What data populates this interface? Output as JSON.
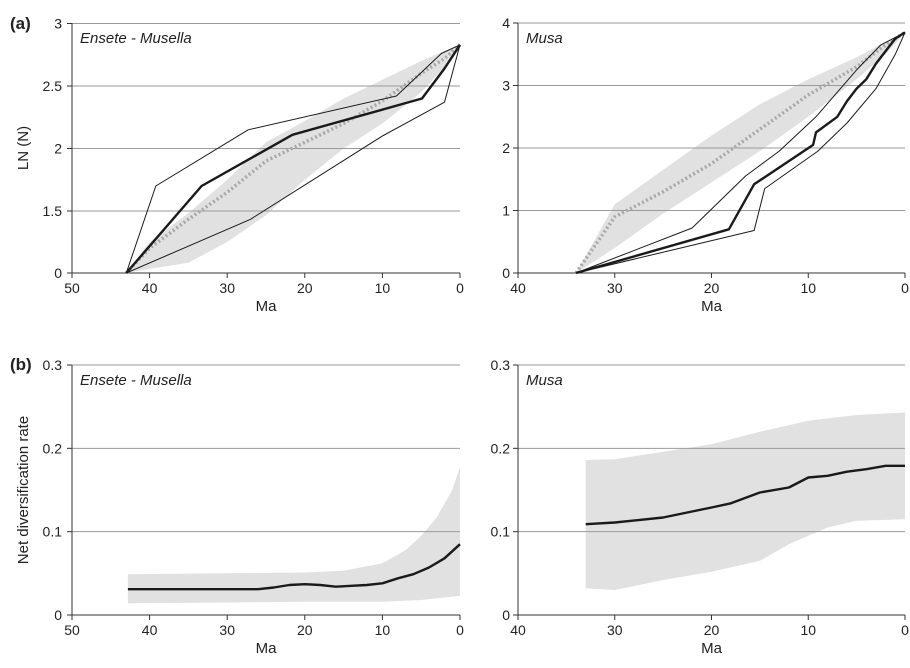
{
  "figure": {
    "panel_labels": [
      "(a)",
      "(b)"
    ]
  },
  "colors": {
    "band": "#e1e1e1",
    "grid": "#9a9a9a",
    "axis": "#333333",
    "line": "#1a1a1a",
    "dotted": "#a8a8a8"
  },
  "chart_data": [
    {
      "id": "a-ensete",
      "type": "line",
      "title": "Ensete - Musella",
      "xlabel": "Ma",
      "ylabel": "LN (N)",
      "xlim": [
        50,
        0
      ],
      "ylim": [
        0,
        3
      ],
      "x_ticks": [
        50,
        40,
        30,
        20,
        10,
        0
      ],
      "y_ticks": [
        0,
        1.5,
        2,
        2.5,
        3
      ],
      "y_scale": "piecewise (0 to 1.5 compressed)",
      "grid": "horizontal",
      "band": {
        "upper": [
          [
            43,
            0.0
          ],
          [
            40,
            0.75
          ],
          [
            35,
            1.45
          ],
          [
            30,
            1.75
          ],
          [
            25,
            2.05
          ],
          [
            20,
            2.22
          ],
          [
            15,
            2.4
          ],
          [
            10,
            2.55
          ],
          [
            5,
            2.7
          ],
          [
            2,
            2.78
          ],
          [
            0,
            2.83
          ]
        ],
        "lower": [
          [
            43,
            0.0
          ],
          [
            40,
            0.1
          ],
          [
            35,
            0.25
          ],
          [
            30,
            0.75
          ],
          [
            25,
            1.4
          ],
          [
            20,
            1.75
          ],
          [
            15,
            2.0
          ],
          [
            10,
            2.2
          ],
          [
            5,
            2.45
          ],
          [
            2,
            2.65
          ],
          [
            0,
            2.83
          ]
        ]
      },
      "series": [
        {
          "style": "dotted",
          "points": [
            [
              43,
              0
            ],
            [
              40,
              0.6
            ],
            [
              35,
              1.3
            ],
            [
              30,
              1.65
            ],
            [
              25,
              1.9
            ],
            [
              20,
              2.05
            ],
            [
              15,
              2.2
            ],
            [
              10,
              2.38
            ],
            [
              5,
              2.6
            ],
            [
              2,
              2.72
            ],
            [
              0,
              2.83
            ]
          ]
        },
        {
          "style": "thick",
          "points": [
            [
              43,
              0
            ],
            [
              33.3,
              1.7
            ],
            [
              21.6,
              2.11
            ],
            [
              4.9,
              2.4
            ],
            [
              2,
              2.64
            ],
            [
              0,
              2.83
            ]
          ]
        },
        {
          "style": "thin",
          "points": [
            [
              43,
              0
            ],
            [
              39.2,
              1.7
            ],
            [
              27.3,
              2.15
            ],
            [
              8.2,
              2.42
            ],
            [
              2.4,
              2.76
            ],
            [
              0,
              2.83
            ]
          ]
        },
        {
          "style": "thin",
          "points": [
            [
              43,
              0
            ],
            [
              27,
              1.3
            ],
            [
              10,
              2.1
            ],
            [
              2,
              2.37
            ],
            [
              0,
              2.83
            ]
          ]
        }
      ]
    },
    {
      "id": "a-musa",
      "type": "line",
      "title": "Musa",
      "xlabel": "Ma",
      "ylabel": "",
      "xlim": [
        40,
        0
      ],
      "ylim": [
        0,
        4
      ],
      "x_ticks": [
        40,
        30,
        20,
        10,
        0
      ],
      "y_ticks": [
        0,
        1,
        2,
        3,
        4
      ],
      "grid": "horizontal",
      "band": {
        "upper": [
          [
            34,
            0.0
          ],
          [
            32,
            0.55
          ],
          [
            30,
            1.1
          ],
          [
            25,
            1.65
          ],
          [
            20,
            2.2
          ],
          [
            15,
            2.7
          ],
          [
            10,
            3.1
          ],
          [
            5,
            3.45
          ],
          [
            2,
            3.7
          ],
          [
            0,
            3.85
          ]
        ],
        "lower": [
          [
            34,
            0.0
          ],
          [
            32,
            0.2
          ],
          [
            30,
            0.4
          ],
          [
            25,
            0.95
          ],
          [
            20,
            1.45
          ],
          [
            15,
            1.95
          ],
          [
            10,
            2.5
          ],
          [
            5,
            3.1
          ],
          [
            2,
            3.5
          ],
          [
            0,
            3.85
          ]
        ]
      },
      "series": [
        {
          "style": "dotted",
          "points": [
            [
              34,
              0
            ],
            [
              30,
              0.9
            ],
            [
              25,
              1.3
            ],
            [
              20,
              1.75
            ],
            [
              15,
              2.3
            ],
            [
              10,
              2.85
            ],
            [
              5,
              3.3
            ],
            [
              2,
              3.65
            ],
            [
              0,
              3.85
            ]
          ]
        },
        {
          "style": "thick",
          "points": [
            [
              34,
              0
            ],
            [
              18.2,
              0.7
            ],
            [
              15.6,
              1.42
            ],
            [
              9.5,
              2.05
            ],
            [
              9.2,
              2.25
            ],
            [
              7,
              2.5
            ],
            [
              6,
              2.75
            ],
            [
              5,
              2.95
            ],
            [
              4,
              3.1
            ],
            [
              3,
              3.35
            ],
            [
              2,
              3.55
            ],
            [
              1,
              3.75
            ],
            [
              0,
              3.85
            ]
          ]
        },
        {
          "style": "thin",
          "points": [
            [
              34,
              0
            ],
            [
              22,
              0.72
            ],
            [
              16.5,
              1.55
            ],
            [
              13,
              1.95
            ],
            [
              9.2,
              2.5
            ],
            [
              5,
              3.25
            ],
            [
              2.5,
              3.65
            ],
            [
              0,
              3.85
            ]
          ]
        },
        {
          "style": "thin",
          "points": [
            [
              34,
              0
            ],
            [
              15.6,
              0.68
            ],
            [
              14.5,
              1.35
            ],
            [
              9,
              1.95
            ],
            [
              6,
              2.4
            ],
            [
              3,
              2.95
            ],
            [
              1,
              3.5
            ],
            [
              0,
              3.85
            ]
          ]
        }
      ]
    },
    {
      "id": "b-ensete",
      "type": "line",
      "title": "Ensete - Musella",
      "xlabel": "Ma",
      "ylabel": "Net diversification rate",
      "xlim": [
        50,
        0
      ],
      "ylim": [
        0,
        0.3
      ],
      "x_ticks": [
        50,
        40,
        30,
        20,
        10,
        0
      ],
      "y_ticks": [
        0,
        0.1,
        0.2,
        0.3
      ],
      "grid": "horizontal",
      "band": {
        "upper": [
          [
            42.8,
            0.049
          ],
          [
            30,
            0.05
          ],
          [
            20,
            0.051
          ],
          [
            15,
            0.053
          ],
          [
            10,
            0.062
          ],
          [
            7,
            0.078
          ],
          [
            5,
            0.095
          ],
          [
            3,
            0.117
          ],
          [
            1,
            0.15
          ],
          [
            0,
            0.178
          ]
        ],
        "lower": [
          [
            42.8,
            0.014
          ],
          [
            30,
            0.015
          ],
          [
            20,
            0.016
          ],
          [
            10,
            0.016
          ],
          [
            5,
            0.018
          ],
          [
            0,
            0.023
          ]
        ]
      },
      "series": [
        {
          "style": "thick",
          "points": [
            [
              42.8,
              0.031
            ],
            [
              26,
              0.031
            ],
            [
              24,
              0.033
            ],
            [
              22,
              0.036
            ],
            [
              20,
              0.037
            ],
            [
              18,
              0.036
            ],
            [
              16,
              0.034
            ],
            [
              14,
              0.035
            ],
            [
              12,
              0.036
            ],
            [
              10,
              0.038
            ],
            [
              8,
              0.044
            ],
            [
              6,
              0.049
            ],
            [
              4,
              0.057
            ],
            [
              2,
              0.068
            ],
            [
              0,
              0.085
            ]
          ]
        }
      ]
    },
    {
      "id": "b-musa",
      "type": "line",
      "title": "Musa",
      "xlabel": "Ma",
      "ylabel": "",
      "xlim": [
        40,
        0
      ],
      "ylim": [
        0,
        0.3
      ],
      "x_ticks": [
        40,
        30,
        20,
        10,
        0
      ],
      "y_ticks": [
        0,
        0.1,
        0.2,
        0.3
      ],
      "grid": "horizontal",
      "band": {
        "upper": [
          [
            33,
            0.186
          ],
          [
            30,
            0.187
          ],
          [
            25,
            0.196
          ],
          [
            20,
            0.205
          ],
          [
            15,
            0.22
          ],
          [
            10,
            0.233
          ],
          [
            5,
            0.24
          ],
          [
            0,
            0.243
          ]
        ],
        "lower": [
          [
            33,
            0.032
          ],
          [
            30,
            0.03
          ],
          [
            25,
            0.042
          ],
          [
            20,
            0.052
          ],
          [
            15,
            0.065
          ],
          [
            12,
            0.085
          ],
          [
            10,
            0.095
          ],
          [
            8,
            0.105
          ],
          [
            5,
            0.113
          ],
          [
            0,
            0.115
          ]
        ]
      },
      "series": [
        {
          "style": "thick",
          "points": [
            [
              33,
              0.109
            ],
            [
              30,
              0.111
            ],
            [
              25,
              0.117
            ],
            [
              20,
              0.129
            ],
            [
              18,
              0.134
            ],
            [
              15,
              0.147
            ],
            [
              12,
              0.153
            ],
            [
              10,
              0.165
            ],
            [
              8,
              0.167
            ],
            [
              6,
              0.172
            ],
            [
              4,
              0.175
            ],
            [
              2,
              0.179
            ],
            [
              0,
              0.179
            ]
          ]
        }
      ]
    }
  ]
}
